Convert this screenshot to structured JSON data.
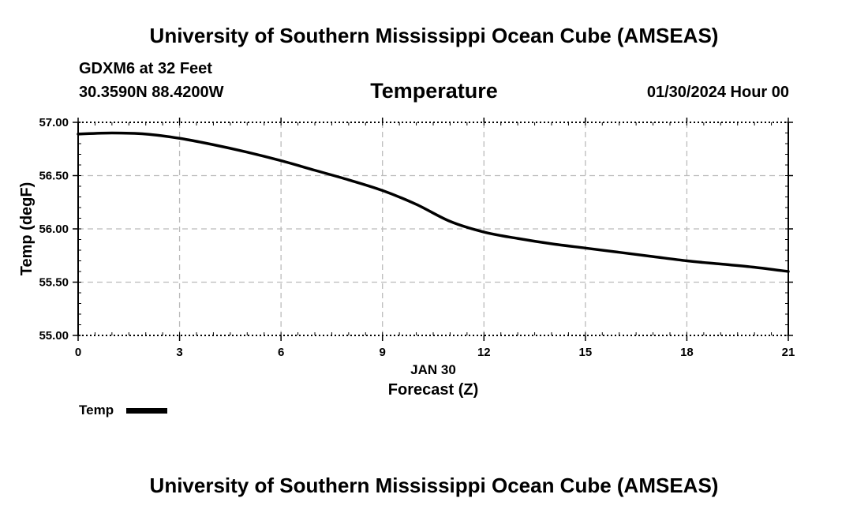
{
  "header": {
    "title": "University of Southern Mississippi Ocean Cube (AMSEAS)",
    "station": "GDXM6 at 32 Feet",
    "coords": "30.3590N  88.4200W",
    "datetime": "01/30/2024 Hour 00"
  },
  "footer": {
    "title": "University of Southern Mississippi Ocean Cube (AMSEAS)"
  },
  "legend": {
    "label": "Temp",
    "color": "#000000"
  },
  "chart_data": {
    "type": "line",
    "title": "Temperature",
    "xlabel": "Forecast (Z)",
    "xlabel_date": "JAN 30",
    "ylabel": "Temp (degF)",
    "xlim": [
      0,
      21
    ],
    "ylim": [
      55.0,
      57.0
    ],
    "grid": true,
    "legend_position": "bottom-left",
    "x_ticks": [
      0,
      3,
      6,
      9,
      12,
      15,
      18,
      21
    ],
    "x_tick_labels": [
      "0",
      "3",
      "6",
      "9",
      "12",
      "15",
      "18",
      "21"
    ],
    "y_ticks": [
      55.0,
      55.5,
      56.0,
      56.5,
      57.0
    ],
    "y_tick_labels": [
      "55.00",
      "55.50",
      "56.00",
      "56.50",
      "57.00"
    ],
    "series": [
      {
        "name": "Temp",
        "color": "#000000",
        "x": [
          0,
          1,
          2,
          3,
          4,
          5,
          6,
          7,
          8,
          9,
          10,
          11,
          12,
          13,
          14,
          15,
          16,
          17,
          18,
          19,
          20,
          21
        ],
        "values": [
          56.89,
          56.9,
          56.89,
          56.85,
          56.79,
          56.72,
          56.64,
          56.55,
          56.46,
          56.36,
          56.23,
          56.07,
          55.97,
          55.91,
          55.86,
          55.82,
          55.78,
          55.74,
          55.7,
          55.67,
          55.64,
          55.6
        ]
      }
    ]
  }
}
